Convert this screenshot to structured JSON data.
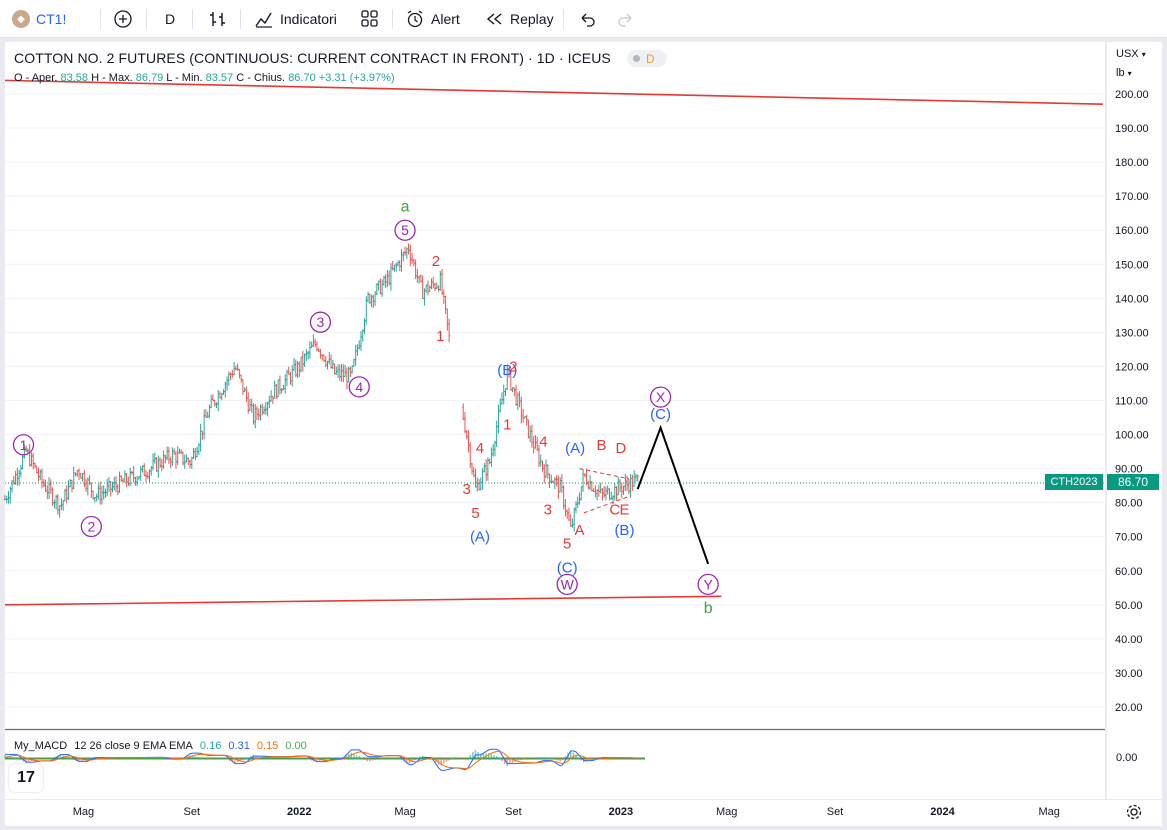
{
  "toolbar": {
    "symbol": "CT1!",
    "interval": "D",
    "indicators_label": "Indicatori",
    "alert_label": "Alert",
    "replay_label": "Replay"
  },
  "legend": {
    "title": "COTTON NO. 2 FUTURES (CONTINUOUS: CURRENT CONTRACT IN FRONT) · 1D · ICEUS",
    "badge": "D",
    "open_label": "O - Aper.",
    "open": "83.58",
    "high_label": "H - Max.",
    "high": "86.79",
    "low_label": "L - Min.",
    "low": "83.57",
    "close_label": "C - Chius.",
    "close": "86.70",
    "change": "+3.31 (+3.97%)"
  },
  "price_scale": {
    "currency": "USX",
    "unit": "lb",
    "ticks": [
      "200.00",
      "190.00",
      "180.00",
      "170.00",
      "160.00",
      "150.00",
      "140.00",
      "130.00",
      "120.00",
      "110.00",
      "100.00",
      "90.00",
      "80.00",
      "70.00",
      "60.00",
      "50.00",
      "40.00",
      "30.00",
      "20.00"
    ],
    "last_price": "86.70",
    "last_ticker": "CTH2023"
  },
  "time_scale": {
    "ticks": [
      "Mag",
      "Set",
      "2022",
      "Mag",
      "Set",
      "2023",
      "Mag",
      "Set",
      "2024",
      "Mag"
    ]
  },
  "macd": {
    "name": "My_MACD",
    "params": "12 26 close 9 EMA EMA",
    "values": [
      "0.16",
      "0.31",
      "0.15",
      "0.00"
    ],
    "colors": [
      "#26a69a",
      "#2962ff",
      "#ff6d00",
      "#4caf50"
    ],
    "zero_label": "0.00"
  },
  "colors": {
    "up": "#26a69a",
    "down": "#ef5350",
    "red_line": "#e53935",
    "wave_purple": "#9c27b0",
    "wave_blue": "#2962ff",
    "wave_red": "#e53935",
    "wave_green": "#43a047"
  },
  "chart_data": {
    "type": "line",
    "title": "COTTON NO. 2 FUTURES (CONTINUOUS: CURRENT CONTRACT IN FRONT) · 1D · ICEUS",
    "ylabel": "USX / lb",
    "ylim": [
      15,
      205
    ],
    "x_ticks": [
      "Mag",
      "Set",
      "2022",
      "Mag",
      "Set",
      "2023",
      "Mag",
      "Set",
      "2024",
      "Mag"
    ],
    "series": [
      {
        "values": [
          {
            "x": "2021-02",
            "y": 81
          },
          {
            "x": "2021-02-25",
            "y": 95
          },
          {
            "x": "2021-03-15",
            "y": 86
          },
          {
            "x": "2021-04-05",
            "y": 79
          },
          {
            "x": "2021-04-25",
            "y": 90
          },
          {
            "x": "2021-05-15",
            "y": 82
          },
          {
            "x": "2021-06-15",
            "y": 86
          },
          {
            "x": "2021-07-15",
            "y": 90
          },
          {
            "x": "2021-08-10",
            "y": 94
          },
          {
            "x": "2021-08-31",
            "y": 92
          },
          {
            "x": "2021-09-20",
            "y": 107
          },
          {
            "x": "2021-10-20",
            "y": 120
          },
          {
            "x": "2021-11-10",
            "y": 105
          },
          {
            "x": "2021-12-01",
            "y": 112
          },
          {
            "x": "2022-01-01",
            "y": 120
          },
          {
            "x": "2022-01-20",
            "y": 127
          },
          {
            "x": "2022-02-10",
            "y": 118
          },
          {
            "x": "2022-03-01",
            "y": 117
          },
          {
            "x": "2022-03-20",
            "y": 140
          },
          {
            "x": "2022-04-10",
            "y": 145
          },
          {
            "x": "2022-05-05",
            "y": 155
          },
          {
            "x": "2022-05-20",
            "y": 142
          },
          {
            "x": "2022-06-10",
            "y": 145
          },
          {
            "x": "2022-06-25",
            "y": 120
          },
          {
            "x": "2022-07-10",
            "y": 100
          },
          {
            "x": "2022-07-20",
            "y": 84
          },
          {
            "x": "2022-08-05",
            "y": 92
          },
          {
            "x": "2022-08-25",
            "y": 118
          },
          {
            "x": "2022-09-15",
            "y": 103
          },
          {
            "x": "2022-10-05",
            "y": 90
          },
          {
            "x": "2022-10-25",
            "y": 84
          },
          {
            "x": "2022-11-05",
            "y": 72
          },
          {
            "x": "2022-11-20",
            "y": 88
          },
          {
            "x": "2022-12-10",
            "y": 82
          },
          {
            "x": "2023-01-05",
            "y": 85
          },
          {
            "x": "2023-01-20",
            "y": 86.7
          }
        ]
      }
    ],
    "projection": [
      {
        "x": "2023-01-20",
        "y": 84
      },
      {
        "x": "2023-02-15",
        "y": 102
      },
      {
        "x": "2023-04-10",
        "y": 62
      }
    ],
    "trendlines": [
      {
        "from": {
          "x": "2021-02",
          "y": 204
        },
        "to": {
          "x": "2024-07",
          "y": 197
        }
      },
      {
        "from": {
          "x": "2021-02",
          "y": 50
        },
        "to": {
          "x": "2023-04-25",
          "y": 52.5
        }
      }
    ],
    "wave_labels": [
      {
        "text": "1",
        "style": "circle-purple",
        "x": "2021-02-22",
        "y": 97
      },
      {
        "text": "2",
        "style": "circle-purple",
        "x": "2021-05-10",
        "y": 73
      },
      {
        "text": "3",
        "style": "circle-purple",
        "x": "2022-01-25",
        "y": 133
      },
      {
        "text": "4",
        "style": "circle-purple",
        "x": "2022-03-10",
        "y": 114
      },
      {
        "text": "5",
        "style": "circle-purple",
        "x": "2022-05-01",
        "y": 160
      },
      {
        "text": "a",
        "style": "green",
        "x": "2022-05-01",
        "y": 167
      },
      {
        "text": "2",
        "style": "red",
        "x": "2022-06-05",
        "y": 151
      },
      {
        "text": "1",
        "style": "red",
        "x": "2022-06-10",
        "y": 129
      },
      {
        "text": "4",
        "style": "red",
        "x": "2022-07-25",
        "y": 96
      },
      {
        "text": "3",
        "style": "red",
        "x": "2022-07-10",
        "y": 84
      },
      {
        "text": "5",
        "style": "red",
        "x": "2022-07-20",
        "y": 77
      },
      {
        "text": "(A)",
        "style": "blue",
        "x": "2022-07-25",
        "y": 70
      },
      {
        "text": "(B)",
        "style": "blue",
        "x": "2022-08-25",
        "y": 119
      },
      {
        "text": "2",
        "style": "red",
        "x": "2022-09-01",
        "y": 120
      },
      {
        "text": "1",
        "style": "red",
        "x": "2022-08-25",
        "y": 103
      },
      {
        "text": "4",
        "style": "red",
        "x": "2022-10-05",
        "y": 98
      },
      {
        "text": "3",
        "style": "red",
        "x": "2022-10-10",
        "y": 78
      },
      {
        "text": "5",
        "style": "red",
        "x": "2022-11-01",
        "y": 68
      },
      {
        "text": "(C)",
        "style": "blue",
        "x": "2022-11-01",
        "y": 61
      },
      {
        "text": "W",
        "style": "circle-purple",
        "x": "2022-11-01",
        "y": 56
      },
      {
        "text": "(A)",
        "style": "blue",
        "x": "2022-11-10",
        "y": 96
      },
      {
        "text": "A",
        "style": "red",
        "x": "2022-11-15",
        "y": 72
      },
      {
        "text": "B",
        "style": "red",
        "x": "2022-12-10",
        "y": 97
      },
      {
        "text": "D",
        "style": "red",
        "x": "2023-01-01",
        "y": 96
      },
      {
        "text": "C",
        "style": "red",
        "x": "2022-12-25",
        "y": 78
      },
      {
        "text": "E",
        "style": "red",
        "x": "2023-01-05",
        "y": 78
      },
      {
        "text": "(B)",
        "style": "blue",
        "x": "2023-01-05",
        "y": 72
      },
      {
        "text": "X",
        "style": "circle-purple",
        "x": "2023-02-15",
        "y": 111
      },
      {
        "text": "(C)",
        "style": "blue",
        "x": "2023-02-15",
        "y": 106
      },
      {
        "text": "Y",
        "style": "circle-purple",
        "x": "2023-04-10",
        "y": 56
      },
      {
        "text": "b",
        "style": "green",
        "x": "2023-04-10",
        "y": 49
      }
    ]
  }
}
